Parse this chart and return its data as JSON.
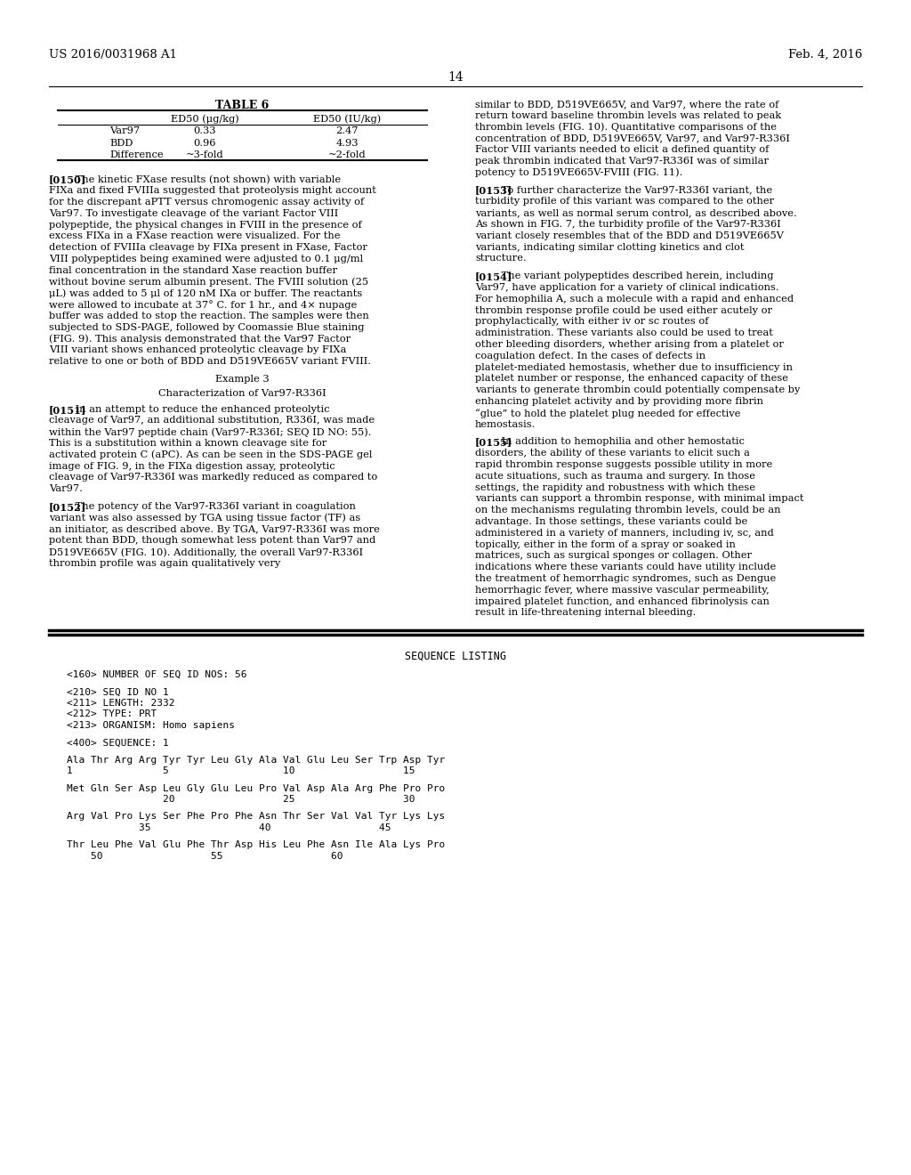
{
  "header_left": "US 2016/0031968 A1",
  "header_right": "Feb. 4, 2016",
  "page_number": "14",
  "table_title": "TABLE 6",
  "table_headers": [
    "",
    "ED50 (μg/kg)",
    "ED50 (IU/kg)"
  ],
  "table_rows": [
    [
      "Var97",
      "0.33",
      "2.47"
    ],
    [
      "BDD",
      "0.96",
      "4.93"
    ],
    [
      "Difference",
      "~3-fold",
      "~2-fold"
    ]
  ],
  "para_0150": "[0150]   The kinetic FXase results (not shown) with variable FIXa and fixed FVIIIa suggested that proteolysis might account for the discrepant aPTT versus chromogenic assay activity of Var97. To investigate cleavage of the variant Factor VIII polypeptide, the physical changes in FVIII in the presence of excess FIXa in a FXase reaction were visualized. For the detection of FVIIIa cleavage by FIXa present in FXase, Factor VIII polypeptides being examined were adjusted to 0.1 μg/ml final concentration in the standard Xase reaction buffer without bovine serum albumin present. The FVIII solution (25 μL) was added to 5 μl of 120 nM IXa or buffer. The reactants were allowed to incubate at 37° C. for 1 hr., and 4× nupage buffer was added to stop the reaction. The samples were then subjected to SDS-PAGE, followed by Coomassie Blue staining (FIG. 9). This analysis demonstrated that the Var97 Factor VIII variant shows enhanced proteolytic cleavage by FIXa relative to one or both of BDD and D519VE665V variant FVIII.",
  "example3_title": "Example 3",
  "char_title": "Characterization of Var97-R336I",
  "para_0151": "[0151]   In an attempt to reduce the enhanced proteolytic cleavage of Var97, an additional substitution, R336I, was made within the Var97 peptide chain (Var97-R336I; SEQ ID NO: 55). This is a substitution within a known cleavage site for activated protein C (aPC). As can be seen in the SDS-PAGE gel image of FIG. 9, in the FIXa digestion assay, proteolytic cleavage of Var97-R336I was markedly reduced as compared to Var97.",
  "para_0152": "[0152]   The potency of the Var97-R336I variant in coagulation variant was also assessed by TGA using tissue factor (TF) as an initiator, as described above. By TGA, Var97-R336I was more potent than BDD, though somewhat less potent than Var97 and D519VE665V (FIG. 10). Additionally, the overall Var97-R336I thrombin profile was again qualitatively very",
  "para_right1": "similar to BDD, D519VE665V, and Var97, where the rate of return toward baseline thrombin levels was related to peak thrombin levels (FIG. 10). Quantitative comparisons of the concentration of BDD, D519VE665V, Var97, and Var97-R336I Factor VIII variants needed to elicit a defined quantity of peak thrombin indicated that Var97-R336I was of similar potency to D519VE665V-FVIII (FIG. 11).",
  "para_0153": "[0153]   To further characterize the Var97-R336I variant, the turbidity profile of this variant was compared to the other variants, as well as normal serum control, as described above. As shown in FIG. 7, the turbidity profile of the Var97-R336I variant closely resembles that of the BDD and D519VE665V variants, indicating similar clotting kinetics and clot structure.",
  "para_0154": "[0154]   The variant polypeptides described herein, including Var97, have application for a variety of clinical indications. For hemophilia A, such a molecule with a rapid and enhanced thrombin response profile could be used either acutely or prophylactically, with either iv or sc routes of administration. These variants also could be used to treat other bleeding disorders, whether arising from a platelet or coagulation defect. In the cases of defects in platelet-mediated hemostasis, whether due to insufficiency in platelet number or response, the enhanced capacity of these variants to generate thrombin could potentially compensate by enhancing platelet activity and by providing more fibrin “glue” to hold the platelet plug needed for effective hemostasis.",
  "para_0155": "[0155]   In addition to hemophilia and other hemostatic disorders, the ability of these variants to elicit such a rapid thrombin response suggests possible utility in more acute situations, such as trauma and surgery. In those settings, the rapidity and robustness with which these variants can support a thrombin response, with minimal impact on the mechanisms regulating thrombin levels, could be an advantage. In those settings, these variants could be administered in a variety of manners, including iv, sc, and topically, either in the form of a spray or soaked in matrices, such as surgical sponges or collagen. Other indications where these variants could have utility include the treatment of hemorrhagic syndromes, such as Dengue hemorrhagic fever, where massive vascular permeability, impaired platelet function, and enhanced fibrinolysis can result in life-threatening internal bleeding.",
  "seq_title": "SEQUENCE LISTING",
  "seq_lines": [
    "",
    "<160> NUMBER OF SEQ ID NOS: 56",
    "",
    "<210> SEQ ID NO 1",
    "<211> LENGTH: 2332",
    "<212> TYPE: PRT",
    "<213> ORGANISM: Homo sapiens",
    "",
    "<400> SEQUENCE: 1",
    "",
    "Ala Thr Arg Arg Tyr Tyr Leu Gly Ala Val Glu Leu Ser Trp Asp Tyr",
    "1               5                   10                  15",
    "",
    "Met Gln Ser Asp Leu Gly Glu Leu Pro Val Asp Ala Arg Phe Pro Pro",
    "                20                  25                  30",
    "",
    "Arg Val Pro Lys Ser Phe Pro Phe Asn Thr Ser Val Val Tyr Lys Lys",
    "            35                  40                  45",
    "",
    "Thr Leu Phe Val Glu Phe Thr Asp His Leu Phe Asn Ile Ala Lys Pro",
    "    50                  55                  60"
  ]
}
